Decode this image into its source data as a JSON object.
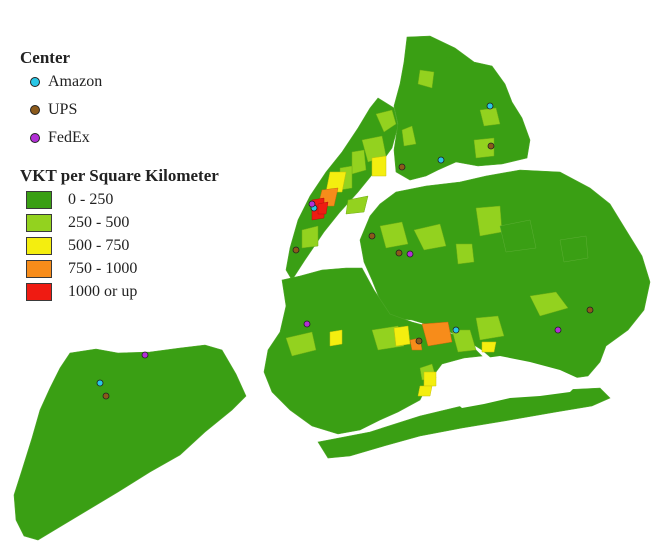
{
  "legend": {
    "center": {
      "title": "Center",
      "items": [
        {
          "label": "Amazon",
          "color": "#29c7e6"
        },
        {
          "label": "UPS",
          "color": "#8b5a1b"
        },
        {
          "label": "FedEx",
          "color": "#b22fd6"
        }
      ]
    },
    "vkt": {
      "title": "VKT per Square Kilometer",
      "classes": [
        {
          "label": "0 - 250",
          "color": "#3a9f14"
        },
        {
          "label": "250 - 500",
          "color": "#93d21f"
        },
        {
          "label": "500 - 750",
          "color": "#f4ee0f"
        },
        {
          "label": "750 - 1000",
          "color": "#f78c1a"
        },
        {
          "label": "1000 or up",
          "color": "#ef1b12"
        }
      ]
    }
  },
  "colors": {
    "background": "#ffffff",
    "water": "#ffffff",
    "base_land": "#3a9f14",
    "boundary": "#58b02c"
  }
}
